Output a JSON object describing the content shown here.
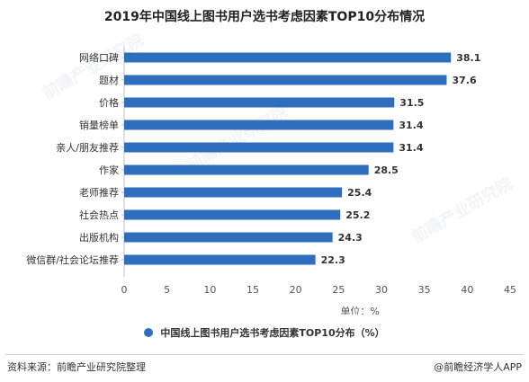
{
  "title": "2019年中国线上图书用户选书考虑因素TOP10分布情况",
  "legend_label": "中国线上图书用户选书考虑因素TOP10分布（%）",
  "source_text": "资料来源：前瞻产业研究院整理",
  "credit_text": "@前瞻经济学人APP",
  "watermark_text": "前瞻产业研究院",
  "colors": {
    "bar": "#2f6dbd"
  },
  "chart_data": {
    "type": "bar",
    "orientation": "horizontal",
    "title": "2019年中国线上图书用户选书考虑因素TOP10分布情况",
    "xlabel": "单位：%",
    "ylabel": "",
    "xlim": [
      0,
      45
    ],
    "xticks": [
      0,
      5,
      10,
      15,
      20,
      25,
      30,
      35,
      40,
      45
    ],
    "categories": [
      "网络口碑",
      "题材",
      "价格",
      "销量榜单",
      "亲人/朋友推荐",
      "作家",
      "老师推荐",
      "社会热点",
      "出版机构",
      "微信群/社会论坛推荐"
    ],
    "series": [
      {
        "name": "中国线上图书用户选书考虑因素TOP10分布（%）",
        "values": [
          38.1,
          37.6,
          31.5,
          31.4,
          31.4,
          28.5,
          25.4,
          25.2,
          24.3,
          22.3
        ]
      }
    ],
    "grid": false,
    "legend_position": "bottom"
  }
}
